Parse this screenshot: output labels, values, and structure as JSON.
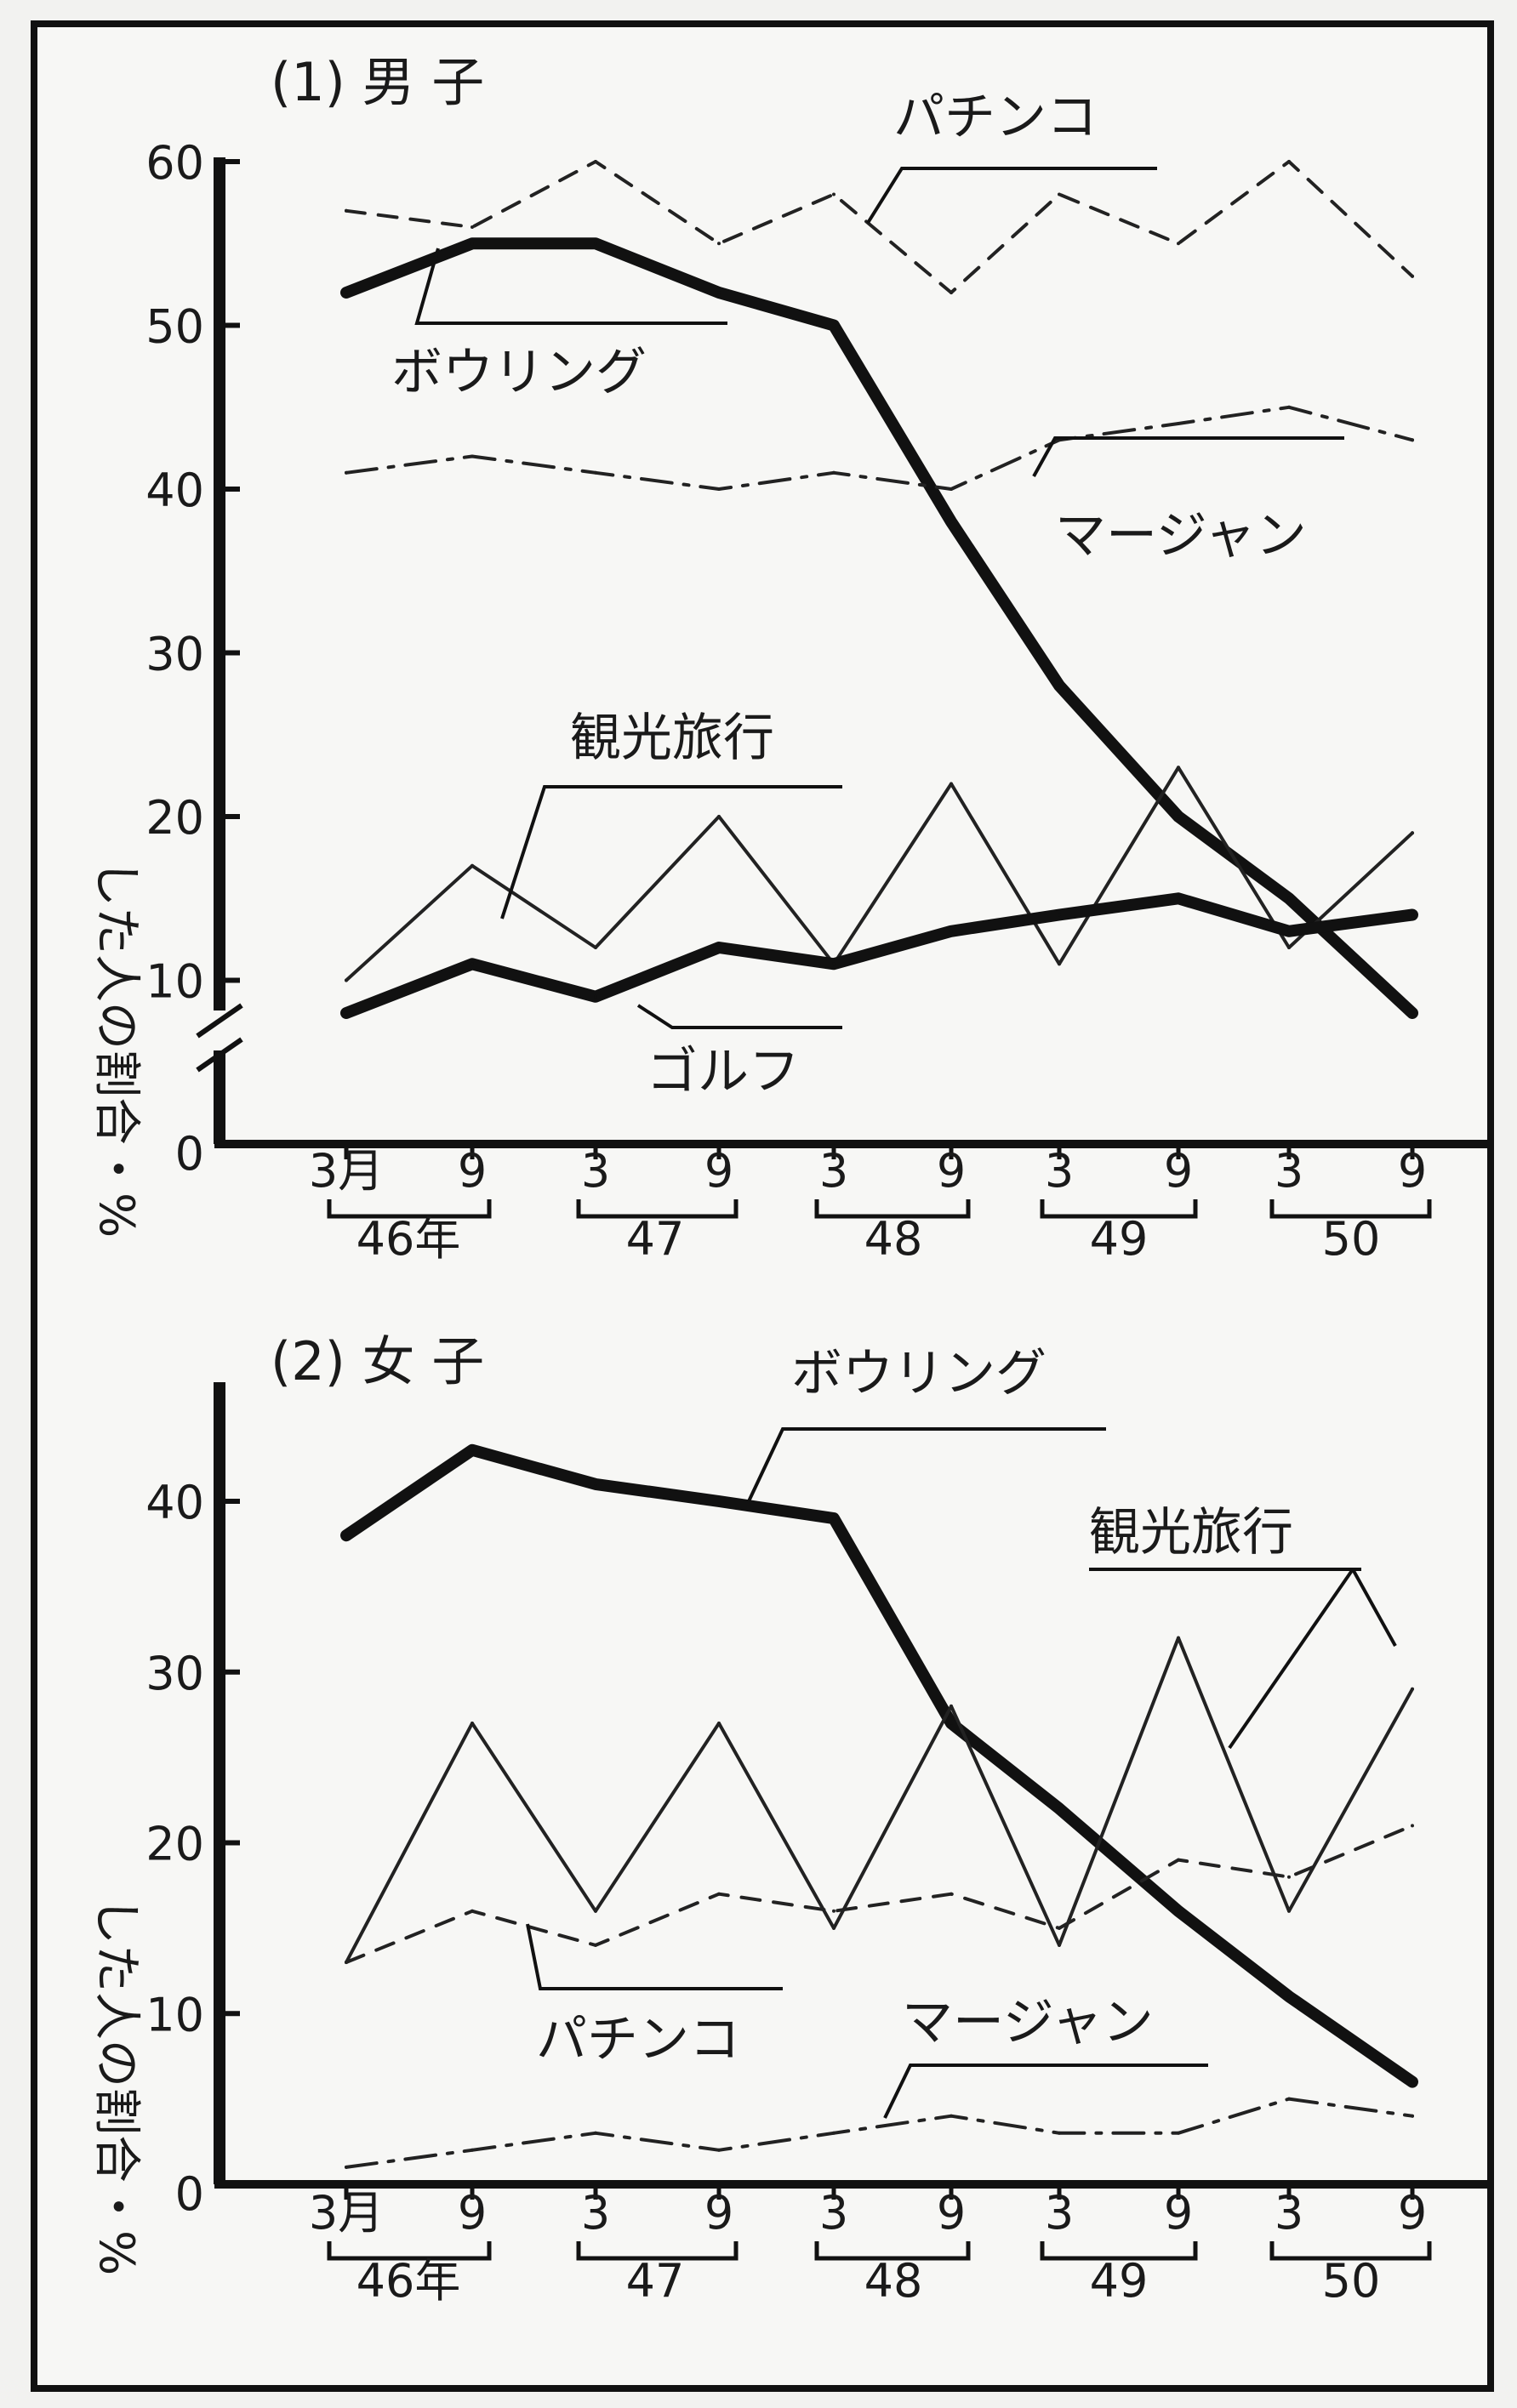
{
  "chart_data": [
    {
      "type": "line",
      "title": "(1) 男 子",
      "ylabel": "した人の割合・%",
      "ylim": [
        0,
        60
      ],
      "yticks": [
        "0",
        "10",
        "20",
        "30",
        "40",
        "50",
        "60"
      ],
      "axis_break": true,
      "grid": false,
      "x_month_labels": [
        "3月",
        "9",
        "3",
        "9",
        "3",
        "9",
        "3",
        "9",
        "3",
        "9"
      ],
      "x_year_labels": [
        "46年",
        "47",
        "48",
        "49",
        "50"
      ],
      "categories": [
        "46年3月",
        "46年9月",
        "47年3月",
        "47年9月",
        "48年3月",
        "48年9月",
        "49年3月",
        "49年9月",
        "50年3月",
        "50年9月"
      ],
      "series": [
        {
          "name": "パチンコ",
          "style": "dashed",
          "color": "#222222",
          "values": [
            57,
            56,
            60,
            55,
            58,
            52,
            58,
            55,
            60,
            53
          ]
        },
        {
          "name": "ボウリング",
          "style": "bold",
          "color": "#111111",
          "values": [
            52,
            55,
            55,
            52,
            50,
            38,
            28,
            20,
            15,
            8
          ]
        },
        {
          "name": "マージャン",
          "style": "dashdot",
          "color": "#222222",
          "values": [
            41,
            42,
            41,
            40,
            41,
            40,
            43,
            44,
            45,
            43
          ]
        },
        {
          "name": "観光旅行",
          "style": "thin",
          "color": "#222222",
          "values": [
            10,
            17,
            12,
            20,
            11,
            22,
            11,
            23,
            12,
            19
          ]
        },
        {
          "name": "ゴルフ",
          "style": "bold",
          "color": "#111111",
          "values": [
            8,
            11,
            9,
            12,
            11,
            13,
            14,
            15,
            13,
            14
          ]
        }
      ]
    },
    {
      "type": "line",
      "title": "(2) 女 子",
      "ylabel": "した人の割合・%",
      "ylim": [
        0,
        45
      ],
      "yticks": [
        "0",
        "10",
        "20",
        "30",
        "40"
      ],
      "grid": false,
      "x_month_labels": [
        "3月",
        "9",
        "3",
        "9",
        "3",
        "9",
        "3",
        "9",
        "3",
        "9"
      ],
      "x_year_labels": [
        "46年",
        "47",
        "48",
        "49",
        "50"
      ],
      "categories": [
        "46年3月",
        "46年9月",
        "47年3月",
        "47年9月",
        "48年3月",
        "48年9月",
        "49年3月",
        "49年9月",
        "50年3月",
        "50年9月"
      ],
      "series": [
        {
          "name": "ボウリング",
          "style": "bold",
          "color": "#111111",
          "values": [
            38,
            43,
            41,
            40,
            39,
            27,
            22,
            16,
            11,
            6
          ]
        },
        {
          "name": "観光旅行",
          "style": "thin",
          "color": "#222222",
          "values": [
            13,
            27,
            16,
            27,
            15,
            28,
            14,
            32,
            16,
            29
          ]
        },
        {
          "name": "パチンコ",
          "style": "dashed",
          "color": "#222222",
          "values": [
            13,
            16,
            14,
            17,
            16,
            17,
            15,
            19,
            18,
            21
          ]
        },
        {
          "name": "マージャン",
          "style": "dashdot",
          "color": "#222222",
          "values": [
            1,
            2,
            3,
            2,
            3,
            4,
            3,
            3,
            5,
            4
          ]
        }
      ]
    }
  ]
}
